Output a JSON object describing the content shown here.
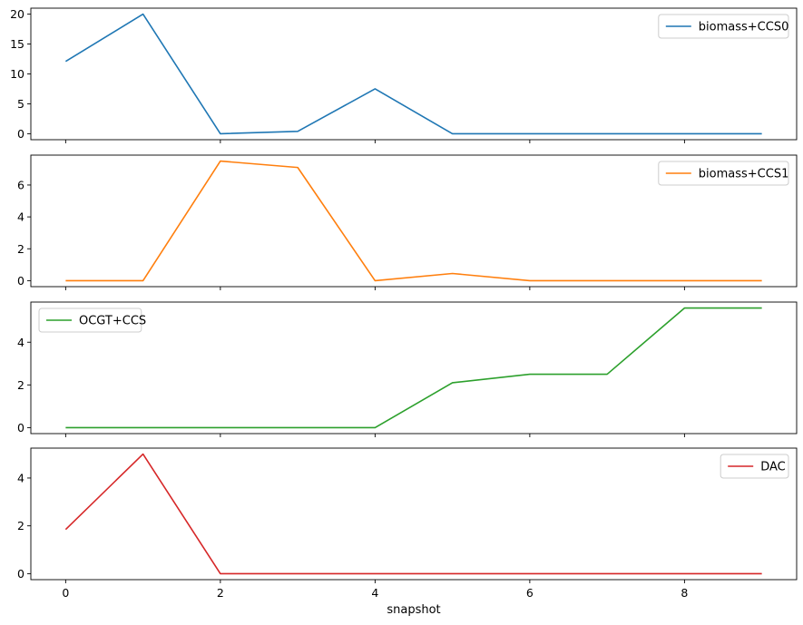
{
  "chart_data": [
    {
      "type": "line",
      "series": [
        {
          "name": "biomass+CCS0",
          "color": "#1f77b4",
          "x": [
            0,
            1,
            2,
            3,
            4,
            5,
            6,
            7,
            8,
            9
          ],
          "values": [
            12.1,
            20.0,
            0.0,
            0.4,
            7.5,
            0.0,
            0.0,
            0.0,
            0.0,
            0.0
          ]
        }
      ],
      "ylim": [
        -1.0,
        21.0
      ],
      "yticks": [
        0,
        5,
        10,
        15,
        20
      ],
      "legend": "top-right"
    },
    {
      "type": "line",
      "series": [
        {
          "name": "biomass+CCS1",
          "color": "#ff7f0e",
          "x": [
            0,
            1,
            2,
            3,
            4,
            5,
            6,
            7,
            8,
            9
          ],
          "values": [
            0.0,
            0.0,
            7.5,
            7.1,
            0.0,
            0.45,
            0.0,
            0.0,
            0.0,
            0.0
          ]
        }
      ],
      "ylim": [
        -0.375,
        7.875
      ],
      "yticks": [
        0,
        2,
        4,
        6
      ],
      "legend": "top-right"
    },
    {
      "type": "line",
      "series": [
        {
          "name": "OCGT+CCS",
          "color": "#2ca02c",
          "x": [
            0,
            1,
            2,
            3,
            4,
            5,
            6,
            7,
            8,
            9
          ],
          "values": [
            0.0,
            0.0,
            0.0,
            0.0,
            0.0,
            2.1,
            2.5,
            2.5,
            5.6,
            5.6
          ]
        }
      ],
      "ylim": [
        -0.28,
        5.88
      ],
      "yticks": [
        0,
        2,
        4
      ],
      "legend": "top-left"
    },
    {
      "type": "line",
      "series": [
        {
          "name": "DAC",
          "color": "#d62728",
          "x": [
            0,
            1,
            2,
            3,
            4,
            5,
            6,
            7,
            8,
            9
          ],
          "values": [
            1.85,
            5.0,
            0.0,
            0.0,
            0.0,
            0.0,
            0.0,
            0.0,
            0.0,
            0.0
          ]
        }
      ],
      "ylim": [
        -0.25,
        5.25
      ],
      "yticks": [
        0,
        2,
        4
      ],
      "legend": "top-right"
    }
  ],
  "x_axis": {
    "label": "snapshot",
    "xlim": [
      -0.45,
      9.45
    ],
    "ticks": [
      0,
      2,
      4,
      6,
      8
    ]
  }
}
